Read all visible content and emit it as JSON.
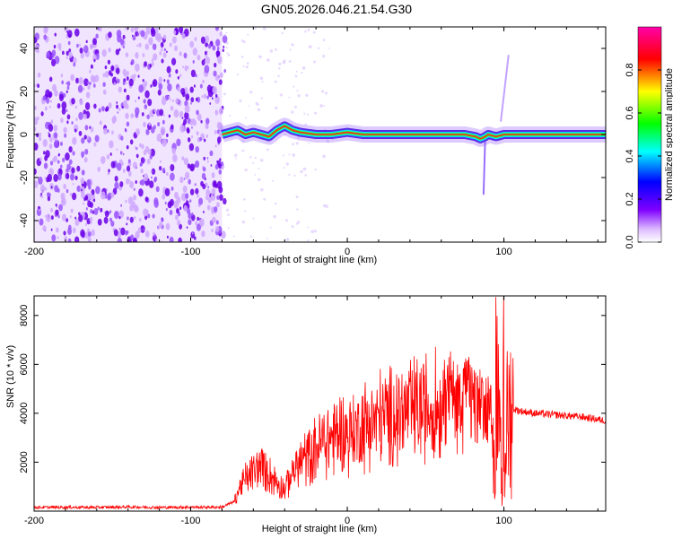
{
  "title": "GN05.2026.046.21.54.G30",
  "chart_data": [
    {
      "type": "heatmap",
      "xlabel": "Height of straight line (km)",
      "ylabel": "Frequency (Hz)",
      "xlim": [
        -200,
        165
      ],
      "ylim": [
        -50,
        50
      ],
      "xticks": [
        "-200",
        "-100",
        "0",
        "100"
      ],
      "xtick_values": [
        -200,
        -100,
        0,
        100
      ],
      "yticks": [
        "-40",
        "-20",
        "0",
        "20",
        "40"
      ],
      "ytick_values": [
        -40,
        -20,
        0,
        20,
        40
      ],
      "noise_region_x": [
        -200,
        -80
      ],
      "ridge": [
        [
          -80,
          0
        ],
        [
          -75,
          1
        ],
        [
          -70,
          2
        ],
        [
          -65,
          0
        ],
        [
          -60,
          1
        ],
        [
          -55,
          0
        ],
        [
          -50,
          -1
        ],
        [
          -45,
          2
        ],
        [
          -40,
          4
        ],
        [
          -35,
          2
        ],
        [
          -30,
          1
        ],
        [
          -20,
          0
        ],
        [
          -10,
          0
        ],
        [
          0,
          1
        ],
        [
          10,
          0
        ],
        [
          20,
          0
        ],
        [
          40,
          0
        ],
        [
          60,
          0
        ],
        [
          75,
          0
        ],
        [
          82,
          -1
        ],
        [
          85,
          -2
        ],
        [
          88,
          -1
        ],
        [
          90,
          0
        ],
        [
          95,
          -1
        ],
        [
          100,
          0
        ],
        [
          110,
          0
        ],
        [
          130,
          0
        ],
        [
          165,
          0
        ]
      ],
      "colorbar": {
        "label": "Normalized spectral amplitude",
        "ticks": [
          "0.0",
          "0.2",
          "0.4",
          "0.6",
          "0.8"
        ],
        "tick_values": [
          0.0,
          0.2,
          0.4,
          0.6,
          0.8
        ],
        "range": [
          0,
          1
        ],
        "colors": [
          "#ffffff",
          "#7f00ff",
          "#0000ff",
          "#00ffff",
          "#00ff00",
          "#ffff00",
          "#ff0000",
          "#ff00ff"
        ]
      }
    },
    {
      "type": "line",
      "xlabel": "Height of straight line (km)",
      "ylabel": "SNR (10 * v/v)",
      "xlim": [
        -200,
        165
      ],
      "ylim": [
        0,
        8800
      ],
      "xticks": [
        "-200",
        "-100",
        "0",
        "100"
      ],
      "xtick_values": [
        -200,
        -100,
        0,
        100
      ],
      "yticks": [
        "2000",
        "4000",
        "6000",
        "8000"
      ],
      "ytick_values": [
        2000,
        4000,
        6000,
        8000
      ],
      "color": "#ff0000",
      "series": [
        {
          "x": [
            -200,
            -180,
            -160,
            -140,
            -120,
            -100,
            -80,
            -72,
            -68,
            -60,
            -55,
            -50,
            -45,
            -40,
            -35,
            -30,
            -25,
            -20,
            -15,
            -10,
            -5,
            0,
            5,
            10,
            15,
            20,
            30,
            40,
            50,
            60,
            65,
            70,
            75,
            80,
            85,
            90,
            95,
            97,
            100,
            103,
            105,
            110,
            120,
            130,
            140,
            150,
            160,
            165
          ],
          "values": [
            150,
            160,
            150,
            170,
            150,
            160,
            160,
            400,
            1100,
            1600,
            1900,
            1500,
            1200,
            900,
            1600,
            2000,
            2200,
            2600,
            2900,
            3000,
            3200,
            3100,
            3300,
            3500,
            3600,
            3800,
            3900,
            4100,
            4200,
            4300,
            4500,
            4400,
            4600,
            4500,
            4000,
            3700,
            3600,
            3400,
            3000,
            3800,
            4200,
            4100,
            4000,
            3950,
            3900,
            3850,
            3750,
            3700
          ]
        }
      ]
    }
  ]
}
